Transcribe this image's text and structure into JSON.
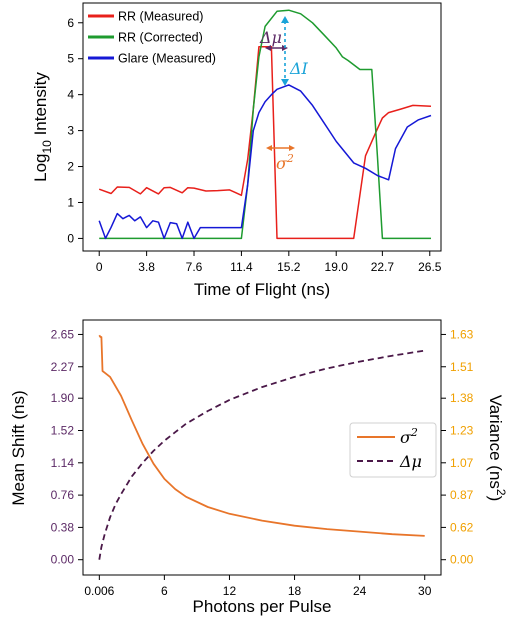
{
  "chart_data": [
    {
      "type": "line",
      "title": "",
      "xlabel": "Time of Flight (ns)",
      "ylabel_main": "Log",
      "ylabel_sub": "10",
      "ylabel_rest": " Intensity",
      "xlim": [
        -1.3,
        27.4
      ],
      "ylim": [
        -0.35,
        6.55
      ],
      "xticks": [
        0,
        3.8,
        7.6,
        11.4,
        15.2,
        19.0,
        22.7,
        26.5
      ],
      "xtick_labels": [
        "0",
        "3.8",
        "7.6",
        "11.4",
        "15.2",
        "19.0",
        "22.7",
        "26.5"
      ],
      "yticks": [
        0,
        1,
        2,
        3,
        4,
        5,
        6
      ],
      "ytick_labels": [
        "0",
        "1",
        "2",
        "3",
        "4",
        "5",
        "6"
      ],
      "legend_position": "top-left",
      "series": [
        {
          "name": "RR (Measured)",
          "color": "#e8201b",
          "x": [
            0,
            0.95,
            1.45,
            2.4,
            3.3,
            3.8,
            4.75,
            5.2,
            5.7,
            6.65,
            7.1,
            7.6,
            8.55,
            9.5,
            10.45,
            10.9,
            11.4,
            11.9,
            12.35,
            12.8,
            13.3,
            13.8,
            14.25,
            15.2,
            17.1,
            19.0,
            20.4,
            21.35,
            22.3,
            22.7,
            23.2,
            24.2,
            25.15,
            26.6
          ],
          "y": [
            1.37,
            1.25,
            1.43,
            1.42,
            1.24,
            1.41,
            1.24,
            1.41,
            1.42,
            1.27,
            1.41,
            1.4,
            1.32,
            1.33,
            1.35,
            1.28,
            1.2,
            2.2,
            3.6,
            5.33,
            5.33,
            5.33,
            0,
            0,
            0,
            0,
            0,
            2.3,
            3.05,
            3.35,
            3.5,
            3.6,
            3.7,
            3.68
          ]
        },
        {
          "name": "RR (Corrected)",
          "color": "#1e9b2f",
          "x": [
            0,
            1.9,
            3.8,
            5.7,
            7.6,
            9.5,
            11.4,
            11.9,
            12.35,
            12.8,
            13.3,
            14.25,
            15.2,
            16.15,
            17.1,
            18.05,
            19.0,
            19.5,
            19.95,
            20.9,
            21.85,
            22.3,
            22.7,
            23.2,
            26.6
          ],
          "y": [
            0,
            0,
            0,
            0,
            0,
            0,
            0,
            1.5,
            3.6,
            5.05,
            5.9,
            6.32,
            6.35,
            6.25,
            6.0,
            5.65,
            5.3,
            5.05,
            4.95,
            4.7,
            4.7,
            2.3,
            0,
            0,
            0
          ]
        },
        {
          "name": "Glare (Measured)",
          "color": "#1518d6",
          "x": [
            0,
            0.5,
            0.95,
            1.45,
            1.9,
            2.4,
            2.85,
            3.3,
            3.8,
            4.3,
            4.75,
            5.2,
            5.7,
            6.2,
            6.65,
            7.1,
            7.6,
            8.1,
            8.55,
            9.5,
            10.45,
            11.4,
            11.9,
            12.35,
            12.8,
            13.3,
            13.8,
            14.25,
            15.2,
            16.15,
            17.1,
            18.05,
            19.0,
            20.4,
            21.35,
            22.3,
            23.2,
            23.75,
            24.7,
            25.6,
            26.6
          ],
          "y": [
            0.49,
            0.0,
            0.31,
            0.69,
            0.55,
            0.64,
            0.49,
            0.6,
            0.3,
            0.49,
            0.45,
            0.0,
            0.44,
            0.41,
            0.0,
            0.45,
            0.0,
            0.3,
            0.3,
            0.3,
            0.3,
            0.3,
            1.5,
            3.0,
            3.5,
            3.8,
            4.0,
            4.15,
            4.27,
            4.1,
            3.7,
            3.2,
            2.7,
            2.1,
            1.95,
            1.75,
            1.63,
            2.5,
            3.1,
            3.3,
            3.42
          ]
        }
      ],
      "annotations": [
        {
          "label": "σ",
          "superscript": "2",
          "color": "#e8752a"
        },
        {
          "label": "Δμ",
          "color": "#5c2a66"
        },
        {
          "label": "ΔI",
          "color": "#1aa3d8"
        }
      ]
    },
    {
      "type": "line",
      "title": "",
      "xlabel": "Photons per Pulse",
      "ylabel_left": "Mean Shift (ns)",
      "ylabel_right_main": "Variance (ns",
      "ylabel_right_sup": "2",
      "ylabel_right_end": ")",
      "xlim": [
        -1.5,
        31.5
      ],
      "xticks": [
        0.006,
        6,
        12,
        18,
        24,
        30
      ],
      "xtick_labels": [
        "0.006",
        "6",
        "12",
        "18",
        "24",
        "30"
      ],
      "ylim_left": [
        -0.18,
        2.82
      ],
      "yticks_left": [
        0.0,
        0.38,
        0.76,
        1.14,
        1.52,
        1.9,
        2.27,
        2.65
      ],
      "ytick_labels_left": [
        "0.00",
        "0.38",
        "0.76",
        "1.14",
        "1.52",
        "1.90",
        "2.27",
        "2.65"
      ],
      "left_tick_color": "#5c2a66",
      "yticks_right": [
        "0.00",
        "0.62",
        "0.87",
        "1.07",
        "1.23",
        "1.38",
        "1.51",
        "1.63"
      ],
      "right_tick_color": "#f0a000",
      "legend_position": "center-right",
      "series": [
        {
          "name": "σ",
          "name_sup": "2",
          "color": "#e8752a",
          "dash": "solid",
          "x": [
            0.006,
            0.1,
            0.2,
            0.25,
            0.3,
            0.5,
            1,
            2,
            3,
            4,
            5,
            6,
            7,
            8,
            10,
            12,
            15,
            18,
            21,
            24,
            27,
            30
          ],
          "y": [
            2.64,
            2.62,
            2.62,
            2.41,
            2.22,
            2.2,
            2.15,
            1.93,
            1.64,
            1.36,
            1.13,
            0.95,
            0.83,
            0.74,
            0.62,
            0.54,
            0.46,
            0.4,
            0.36,
            0.33,
            0.3,
            0.28
          ]
        },
        {
          "name": "Δμ",
          "color": "#4a1848",
          "dash": "dashed",
          "x": [
            0.006,
            0.2,
            0.5,
            1,
            1.5,
            2,
            3,
            4,
            5,
            6,
            7,
            8,
            10,
            12,
            15,
            18,
            21,
            24,
            27,
            30
          ],
          "y": [
            0.0,
            0.15,
            0.3,
            0.5,
            0.65,
            0.77,
            0.98,
            1.14,
            1.28,
            1.4,
            1.5,
            1.6,
            1.75,
            1.88,
            2.03,
            2.15,
            2.25,
            2.33,
            2.4,
            2.46
          ]
        }
      ]
    }
  ]
}
